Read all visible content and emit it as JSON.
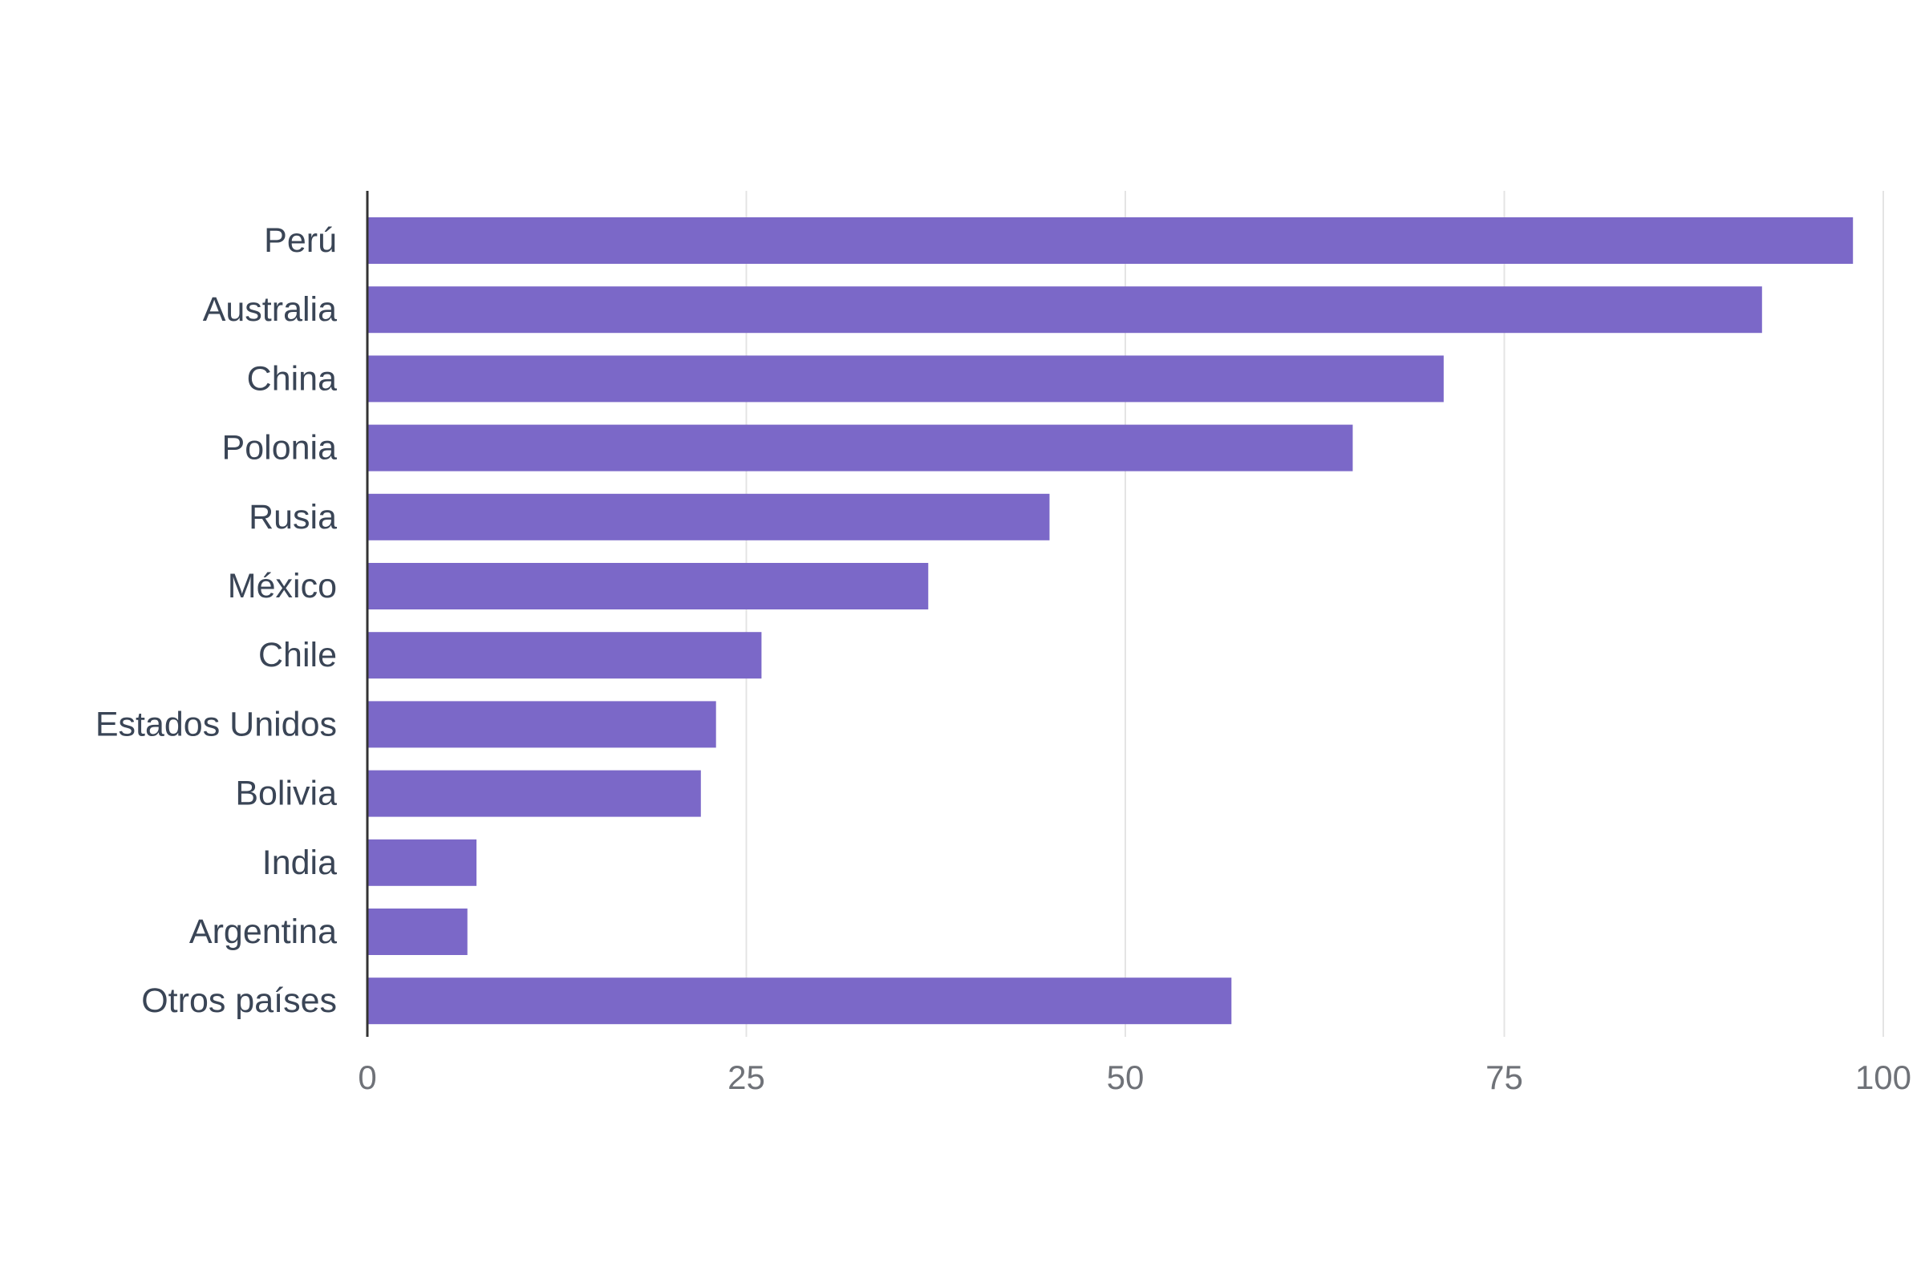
{
  "chart_data": {
    "type": "bar",
    "orientation": "horizontal",
    "title": "",
    "xlabel": "",
    "ylabel": "",
    "categories": [
      "Perú",
      "Australia",
      "China",
      "Polonia",
      "Rusia",
      "México",
      "Chile",
      "Estados Unidos",
      "Bolivia",
      "India",
      "Argentina",
      "Otros países"
    ],
    "values": [
      98,
      92,
      71,
      65,
      45,
      37,
      26,
      23,
      22,
      7.2,
      6.6,
      57
    ],
    "xlim": [
      0,
      100
    ],
    "xticks": [
      "0",
      "25",
      "50",
      "75",
      "100"
    ],
    "xtick_values": [
      0,
      25,
      50,
      75,
      100
    ],
    "grid": "vertical",
    "legend": "none",
    "colors": {
      "bar": "#7b68c8",
      "grid": "#e4e4e4",
      "axis": "#333333"
    }
  }
}
